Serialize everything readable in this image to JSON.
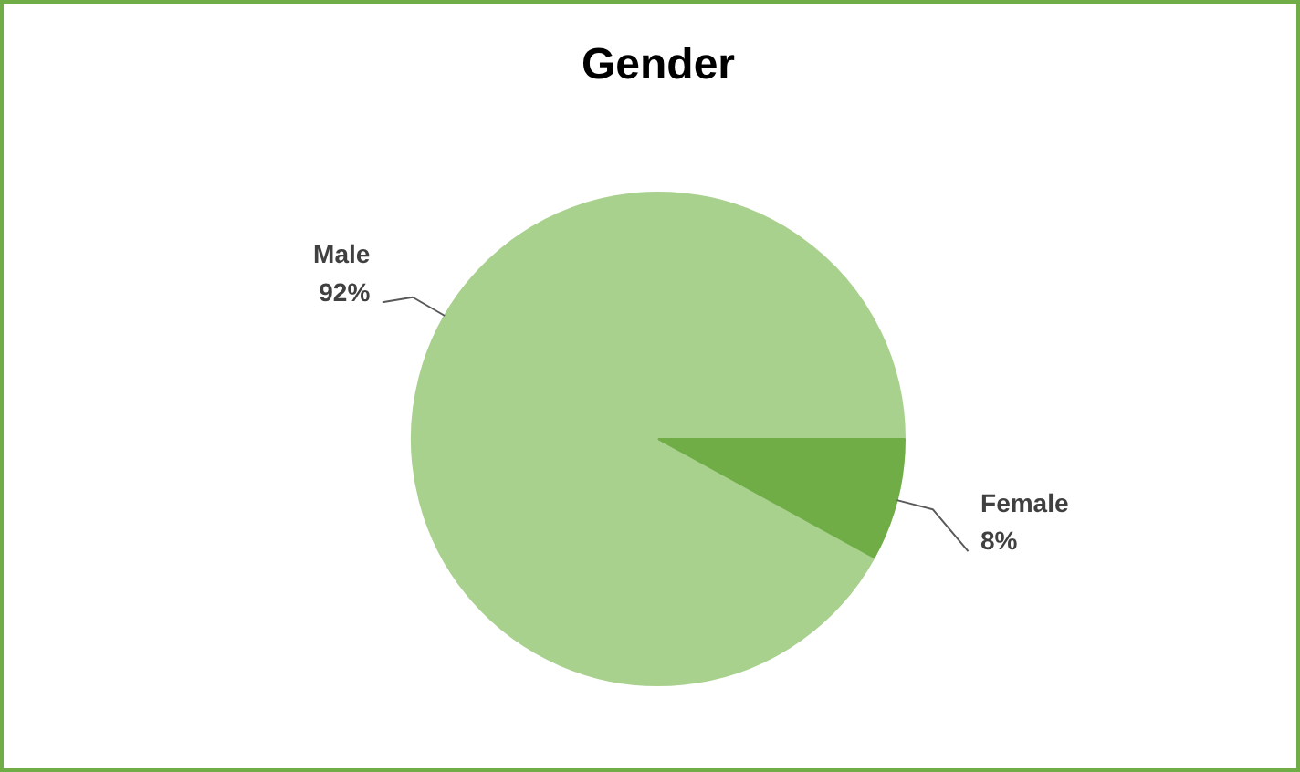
{
  "chart_data": {
    "type": "pie",
    "title": "Gender",
    "categories": [
      "Male",
      "Female"
    ],
    "values": [
      92,
      8
    ],
    "colors": [
      "#a9d18e",
      "#70ad47"
    ],
    "value_labels": [
      "92%",
      "8%"
    ]
  }
}
